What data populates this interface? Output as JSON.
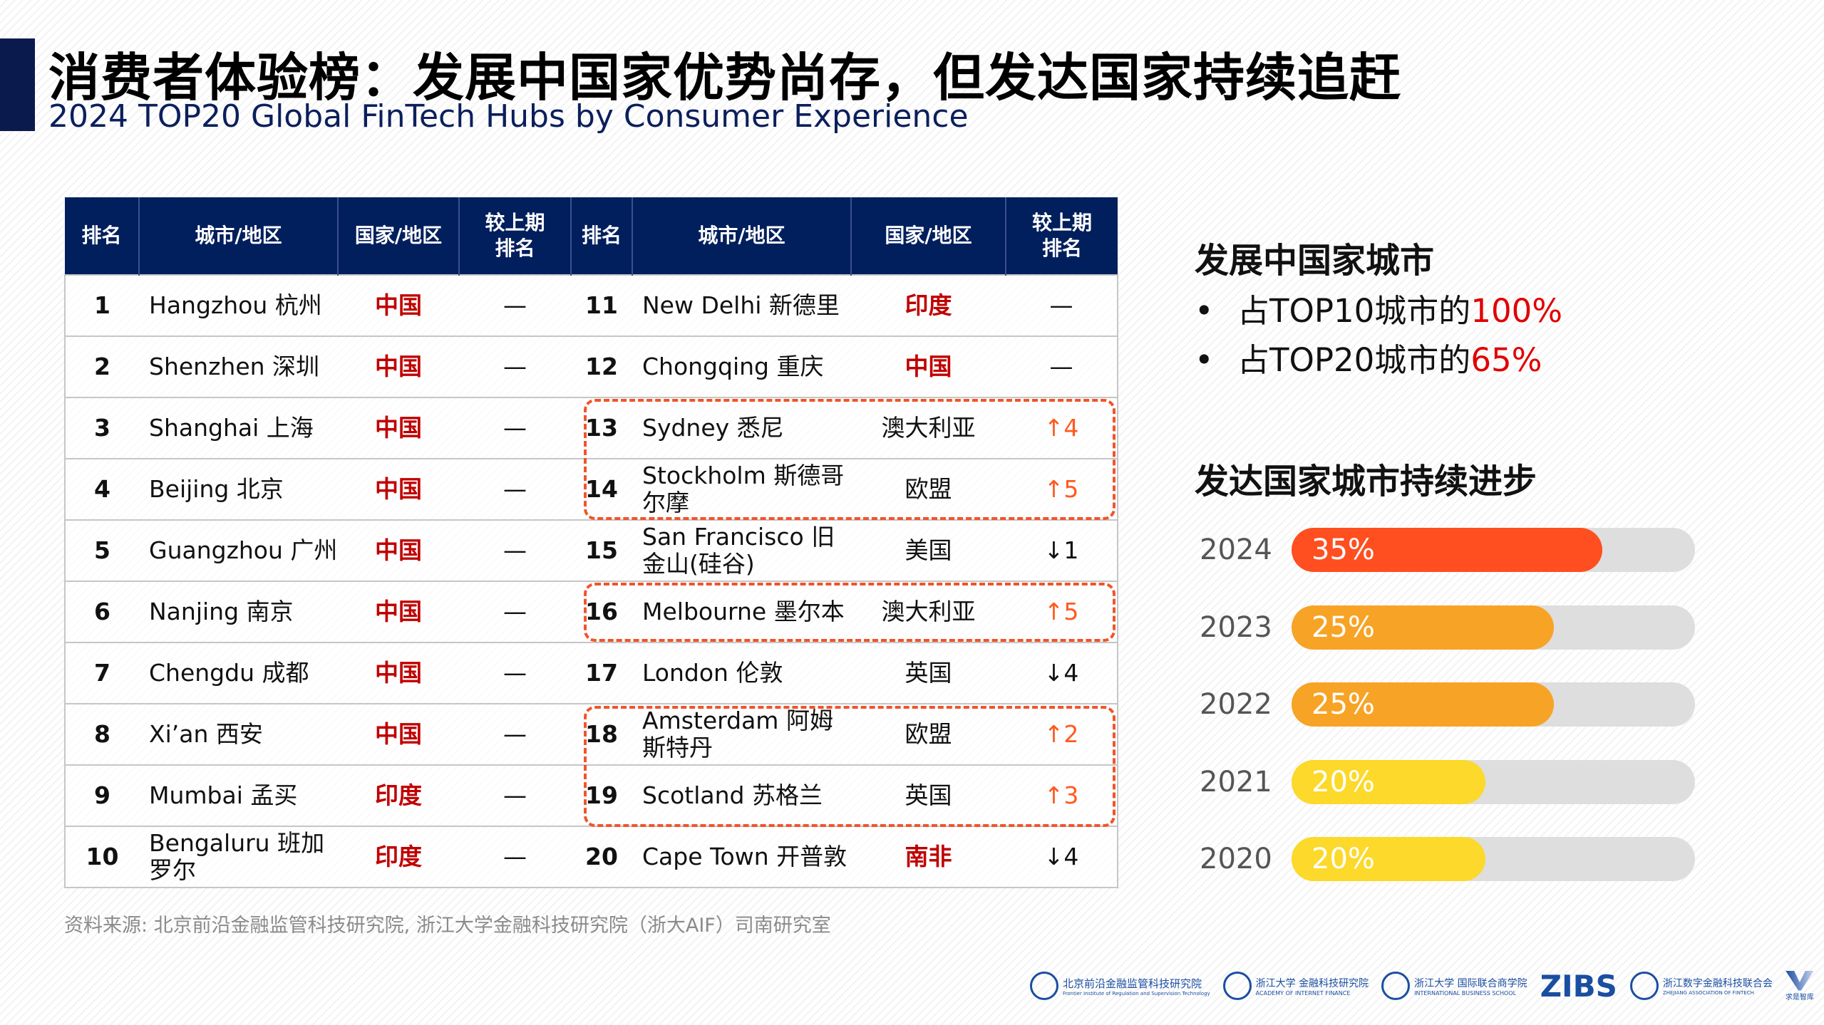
{
  "title": "消费者体验榜：发展中国家优势尚存，但发达国家持续追赶",
  "subtitle": "2024 TOP20 Global FinTech Hubs by Consumer Experience",
  "table": {
    "headers": [
      "排名",
      "城市/地区",
      "国家/地区",
      "较上期排名",
      "排名",
      "城市/地区",
      "国家/地区",
      "较上期排名"
    ],
    "header_lines": [
      [
        "排名"
      ],
      [
        "城市/地区"
      ],
      [
        "国家/地区"
      ],
      [
        "较上期",
        "排名"
      ],
      [
        "排名"
      ],
      [
        "城市/地区"
      ],
      [
        "国家/地区"
      ],
      [
        "较上期",
        "排名"
      ]
    ],
    "rows": [
      [
        {
          "rank": "1",
          "city": "Hangzhou 杭州",
          "country": "中国",
          "change": "—"
        },
        {
          "rank": "11",
          "city": "New Delhi 新德里",
          "country": "印度",
          "change": "—"
        }
      ],
      [
        {
          "rank": "2",
          "city": "Shenzhen 深圳",
          "country": "中国",
          "change": "—"
        },
        {
          "rank": "12",
          "city": "Chongqing 重庆",
          "country": "中国",
          "change": "—"
        }
      ],
      [
        {
          "rank": "3",
          "city": "Shanghai 上海",
          "country": "中国",
          "change": "—"
        },
        {
          "rank": "13",
          "city": "Sydney 悉尼",
          "country": "澳大利亚",
          "change": "↑4"
        }
      ],
      [
        {
          "rank": "4",
          "city": "Beijing 北京",
          "country": "中国",
          "change": "—"
        },
        {
          "rank": "14",
          "city": "Stockholm 斯德哥尔摩",
          "country": "欧盟",
          "change": "↑5"
        }
      ],
      [
        {
          "rank": "5",
          "city": "Guangzhou 广州",
          "country": "中国",
          "change": "—"
        },
        {
          "rank": "15",
          "city": "San Francisco 旧金山(硅谷)",
          "country": "美国",
          "change": "↓1"
        }
      ],
      [
        {
          "rank": "6",
          "city": "Nanjing 南京",
          "country": "中国",
          "change": "—"
        },
        {
          "rank": "16",
          "city": "Melbourne 墨尔本",
          "country": "澳大利亚",
          "change": "↑5"
        }
      ],
      [
        {
          "rank": "7",
          "city": "Chengdu 成都",
          "country": "中国",
          "change": "—"
        },
        {
          "rank": "17",
          "city": "London 伦敦",
          "country": "英国",
          "change": "↓4"
        }
      ],
      [
        {
          "rank": "8",
          "city": "Xi’an 西安",
          "country": "中国",
          "change": "—"
        },
        {
          "rank": "18",
          "city": "Amsterdam 阿姆斯特丹",
          "country": "欧盟",
          "change": "↑2"
        }
      ],
      [
        {
          "rank": "9",
          "city": "Mumbai 孟买",
          "country": "印度",
          "change": "—"
        },
        {
          "rank": "19",
          "city": "Scotland 苏格兰",
          "country": "英国",
          "change": "↑3"
        }
      ],
      [
        {
          "rank": "10",
          "city": "Bengaluru 班加罗尔",
          "country": "印度",
          "change": "—"
        },
        {
          "rank": "20",
          "city": "Cape Town 开普敦",
          "country": "南非",
          "change": "↓4"
        }
      ]
    ],
    "developing_countries": [
      "中国",
      "印度",
      "南非"
    ],
    "highlight_color": "#c00000",
    "rise_color": "#ff5a1f"
  },
  "source": "资料来源: 北京前沿金融监管科技研究院, 浙江大学金融科技研究院（浙大AIF）司南研究室",
  "developing": {
    "heading": "发展中国家城市",
    "bullets": [
      {
        "prefix": "占TOP10城市的",
        "value": "100%"
      },
      {
        "prefix": "占TOP20城市的",
        "value": "65%"
      }
    ]
  },
  "developed": {
    "heading": "发达国家城市持续进步",
    "bars": [
      {
        "year": "2024",
        "label": "35%",
        "fill": 0.77,
        "color": "#ff4e1f"
      },
      {
        "year": "2023",
        "label": "25%",
        "fill": 0.65,
        "color": "#f7a325"
      },
      {
        "year": "2022",
        "label": "25%",
        "fill": 0.65,
        "color": "#f7a325"
      },
      {
        "year": "2021",
        "label": "20%",
        "fill": 0.48,
        "color": "#fcd92a"
      },
      {
        "year": "2020",
        "label": "20%",
        "fill": 0.48,
        "color": "#fcd92a"
      }
    ]
  },
  "logos": {
    "first": "北京前沿金融监管科技研究院",
    "first_en": "Frontier Institute of Regulation and Supervision Technology",
    "aif": "浙江大学 金融科技研究院",
    "aif_en": "ACADEMY OF INTERNET FINANCE",
    "ibs": "浙江大学 国际联合商学院",
    "ibs_en": "INTERNATIONAL BUSINESS SCHOOL",
    "zibs": "ZIBS",
    "zaf": "浙江数字金融科技联合会",
    "zaf_en": "ZHEJIANG ASSOCIATION OF FINTECH",
    "qs": "求是智库"
  }
}
